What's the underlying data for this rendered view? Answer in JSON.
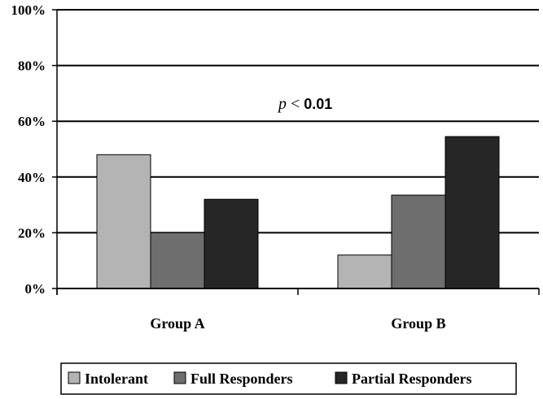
{
  "chart_data": {
    "type": "bar",
    "categories": [
      "Group A",
      "Group B"
    ],
    "series": [
      {
        "name": "Intolerant",
        "values": [
          48,
          12
        ],
        "color": "#b4b4b4"
      },
      {
        "name": "Full Responders",
        "values": [
          20,
          33.5
        ],
        "color": "#6e6e6e"
      },
      {
        "name": "Partial Responders",
        "values": [
          32,
          54.5
        ],
        "color": "#262626"
      }
    ],
    "ylim": [
      0,
      100
    ],
    "yticks": [
      0,
      20,
      40,
      60,
      80,
      100
    ],
    "ytick_labels": [
      "0%",
      "20%",
      "40%",
      "60%",
      "80%",
      "100%"
    ],
    "grid": true,
    "legend_position": "bottom",
    "annotation": {
      "p": "p",
      "op": " < ",
      "value": "0.01"
    },
    "title": "",
    "xlabel": "",
    "ylabel": ""
  }
}
